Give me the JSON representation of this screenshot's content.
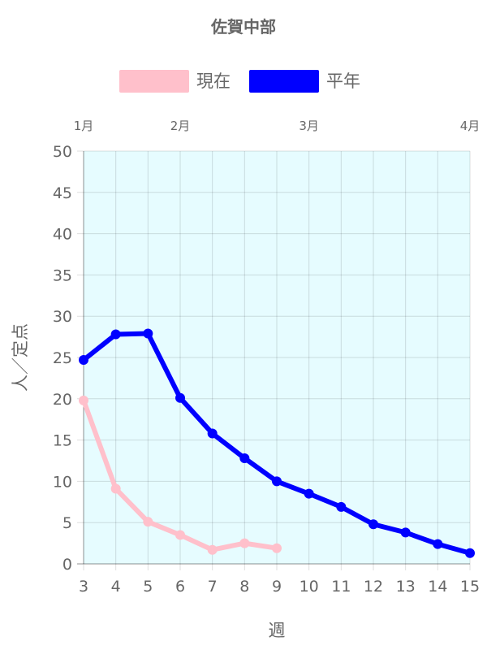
{
  "chart_data": {
    "type": "line",
    "title": "佐賀中部",
    "xlabel": "週",
    "ylabel": "人／定点",
    "x": [
      3,
      4,
      5,
      6,
      7,
      8,
      9,
      10,
      11,
      12,
      13,
      14,
      15
    ],
    "xlim": [
      3,
      15
    ],
    "ylim": [
      0,
      50
    ],
    "yticks": [
      0,
      5,
      10,
      15,
      20,
      25,
      30,
      35,
      40,
      45,
      50
    ],
    "grid": true,
    "legend_position": "top",
    "plot_background": "#e6fcff",
    "month_labels": [
      {
        "label": "1月",
        "week": 3
      },
      {
        "label": "2月",
        "week": 6
      },
      {
        "label": "3月",
        "week": 10
      },
      {
        "label": "4月",
        "week": 15
      }
    ],
    "series": [
      {
        "name": "現在",
        "color": "#ffc0cb",
        "values": [
          19.8,
          9.1,
          5.1,
          3.5,
          1.7,
          2.5,
          1.9,
          null,
          null,
          null,
          null,
          null,
          null
        ]
      },
      {
        "name": "平年",
        "color": "#0000ff",
        "values": [
          24.7,
          27.8,
          27.9,
          20.1,
          15.8,
          12.8,
          10.0,
          8.5,
          6.9,
          4.8,
          3.8,
          2.4,
          1.3
        ]
      }
    ]
  }
}
